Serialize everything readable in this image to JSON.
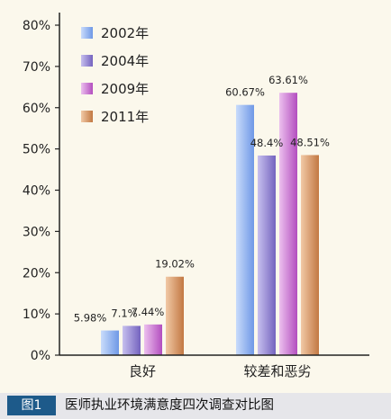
{
  "caption": {
    "tag": "图1",
    "text": "医师执业环境满意度四次调查对比图"
  },
  "chart_data": {
    "type": "bar",
    "categories": [
      "良好",
      "较差和恶劣"
    ],
    "series": [
      {
        "name": "2002年",
        "values": [
          5.98,
          60.67
        ],
        "labels": [
          "5.98%",
          "60.67%"
        ],
        "color_light": "#c9dcfb",
        "color_dark": "#6f98e6"
      },
      {
        "name": "2004年",
        "values": [
          7.1,
          48.4
        ],
        "labels": [
          "7.1%",
          "48.4%"
        ],
        "color_light": "#c7c0ee",
        "color_dark": "#7463bf"
      },
      {
        "name": "2009年",
        "values": [
          7.44,
          63.61
        ],
        "labels": [
          "7.44%",
          "63.61%"
        ],
        "color_light": "#ecc0ee",
        "color_dark": "#b34ebf"
      },
      {
        "name": "2011年",
        "values": [
          19.02,
          48.51
        ],
        "labels": [
          "19.02%",
          "48.51%"
        ],
        "color_light": "#f1c9a6",
        "color_dark": "#c27842"
      }
    ],
    "ylim": [
      0,
      80
    ],
    "yticks": [
      "0%",
      "10%",
      "20%",
      "30%",
      "40%",
      "50%",
      "60%",
      "70%",
      "80%"
    ],
    "legend_position": "top-left",
    "grid": false
  }
}
